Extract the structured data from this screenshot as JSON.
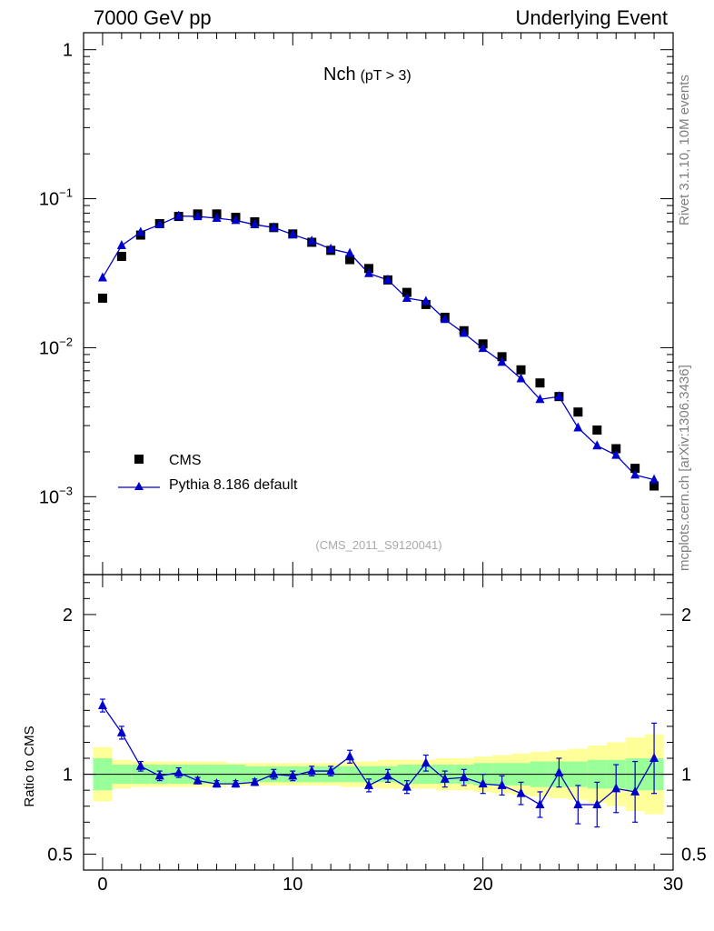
{
  "header": {
    "left": "7000 GeV pp",
    "right": "Underlying Event"
  },
  "side_labels": {
    "rivet": "Rivet 3.1.10,  10M events",
    "mcplots": "mcplots.cern.ch [arXiv:1306.3436]"
  },
  "chart_data": {
    "type": "scatter",
    "title": "Nch",
    "title_sub": "(pT >  3)",
    "watermark": "(CMS_2011_S9120041)",
    "xlim": [
      -1,
      30
    ],
    "ylim": [
      0.0003,
      1.3
    ],
    "yscale": "log",
    "ratio_ylabel": "Ratio to CMS",
    "ratio_ylim": [
      0.4,
      2.25
    ],
    "x_ticks": [
      "0",
      "10",
      "20",
      "30"
    ],
    "main_y_ticks": [
      {
        "base": "1",
        "exp": ""
      },
      {
        "base": "10",
        "exp": "−1"
      },
      {
        "base": "10",
        "exp": "−2"
      },
      {
        "base": "10",
        "exp": "−3"
      }
    ],
    "ratio_y_ticks": [
      "2",
      "1",
      "0.5"
    ],
    "x": [
      0,
      1,
      2,
      3,
      4,
      5,
      6,
      7,
      8,
      9,
      10,
      11,
      12,
      13,
      14,
      15,
      16,
      17,
      18,
      19,
      20,
      21,
      22,
      23,
      24,
      25,
      26,
      27,
      28,
      29
    ],
    "series": [
      {
        "name": "CMS",
        "marker": "square",
        "color": "#000000",
        "values": [
          0.0215,
          0.041,
          0.057,
          0.068,
          0.076,
          0.079,
          0.079,
          0.075,
          0.07,
          0.064,
          0.058,
          0.051,
          0.045,
          0.039,
          0.034,
          0.0285,
          0.0235,
          0.0195,
          0.016,
          0.013,
          0.0106,
          0.0087,
          0.0071,
          0.0058,
          0.0047,
          0.0037,
          0.0028,
          0.0021,
          0.00155,
          0.00118
        ]
      },
      {
        "name": "Pythia 8.186 default",
        "marker": "triangle",
        "color": "#0000cc",
        "values": [
          0.0295,
          0.0485,
          0.0595,
          0.067,
          0.0765,
          0.076,
          0.074,
          0.0715,
          0.067,
          0.064,
          0.0575,
          0.052,
          0.046,
          0.043,
          0.0315,
          0.0285,
          0.0215,
          0.0205,
          0.0155,
          0.0125,
          0.0099,
          0.008,
          0.0062,
          0.0045,
          0.0047,
          0.0029,
          0.0022,
          0.0019,
          0.0014,
          0.0013
        ],
        "ratio": [
          1.43,
          1.26,
          1.05,
          0.99,
          1.01,
          0.96,
          0.94,
          0.94,
          0.95,
          1.0,
          0.99,
          1.02,
          1.02,
          1.11,
          0.93,
          0.99,
          0.92,
          1.07,
          0.97,
          0.98,
          0.94,
          0.93,
          0.88,
          0.81,
          1.01,
          0.81,
          0.81,
          0.91,
          0.89,
          1.1
        ],
        "ratio_err": [
          0.04,
          0.04,
          0.03,
          0.03,
          0.03,
          0.02,
          0.02,
          0.02,
          0.02,
          0.03,
          0.03,
          0.03,
          0.03,
          0.04,
          0.04,
          0.04,
          0.04,
          0.05,
          0.05,
          0.05,
          0.06,
          0.06,
          0.07,
          0.08,
          0.09,
          0.12,
          0.14,
          0.15,
          0.19,
          0.22
        ]
      }
    ],
    "bands": {
      "stat_color": "#99ff99",
      "total_color": "#ffff99",
      "stat": [
        0.1,
        0.06,
        0.06,
        0.06,
        0.06,
        0.06,
        0.06,
        0.06,
        0.05,
        0.05,
        0.05,
        0.05,
        0.05,
        0.05,
        0.05,
        0.05,
        0.06,
        0.06,
        0.06,
        0.06,
        0.07,
        0.07,
        0.07,
        0.08,
        0.08,
        0.08,
        0.09,
        0.09,
        0.1,
        0.1
      ],
      "total": [
        0.17,
        0.09,
        0.08,
        0.08,
        0.08,
        0.08,
        0.08,
        0.07,
        0.07,
        0.07,
        0.07,
        0.07,
        0.07,
        0.08,
        0.08,
        0.09,
        0.09,
        0.09,
        0.1,
        0.1,
        0.11,
        0.12,
        0.13,
        0.14,
        0.15,
        0.16,
        0.18,
        0.2,
        0.23,
        0.25
      ]
    }
  }
}
